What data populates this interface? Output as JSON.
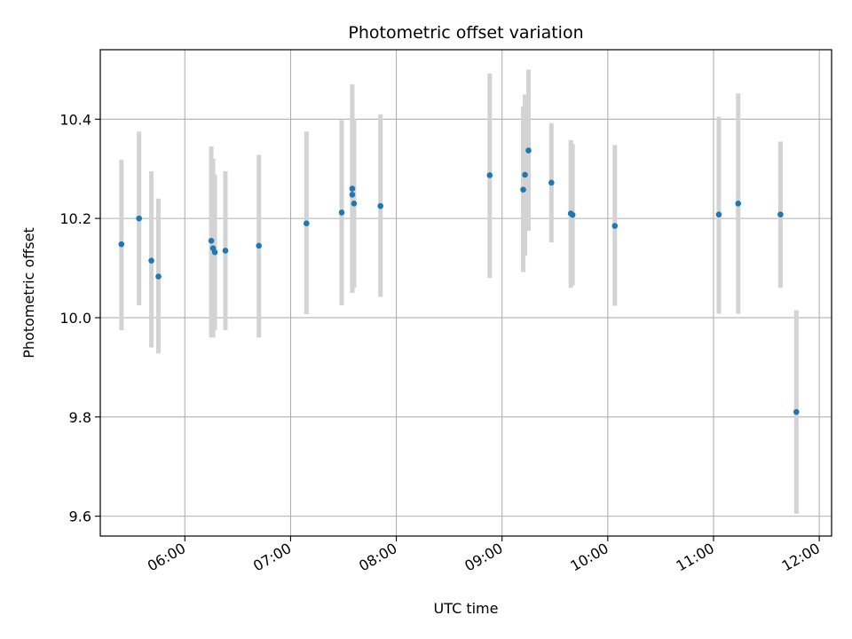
{
  "chart_data": {
    "type": "scatter",
    "title": "Photometric offset variation",
    "xlabel": "UTC time",
    "ylabel": "Photometric offset",
    "x_tick_labels": [
      "06:00",
      "07:00",
      "08:00",
      "09:00",
      "10:00",
      "11:00",
      "12:00"
    ],
    "y_tick_labels": [
      "9.6",
      "9.8",
      "10.0",
      "10.2",
      "10.4"
    ],
    "y_ticks": [
      9.6,
      9.8,
      10.0,
      10.2,
      10.4
    ],
    "ylim": [
      9.56,
      10.54
    ],
    "xlim": [
      "05:12",
      "12:07"
    ],
    "grid": true,
    "point_color": "#1f77b4",
    "errorbar_color": "#d3d3d3",
    "points": [
      {
        "x": "05:24",
        "y": 10.148,
        "yerr_low": 9.975,
        "yerr_high": 10.318
      },
      {
        "x": "05:34",
        "y": 10.2,
        "yerr_low": 10.025,
        "yerr_high": 10.375
      },
      {
        "x": "05:41",
        "y": 10.115,
        "yerr_low": 9.94,
        "yerr_high": 10.295
      },
      {
        "x": "05:45",
        "y": 10.083,
        "yerr_low": 9.928,
        "yerr_high": 10.24
      },
      {
        "x": "06:15",
        "y": 10.155,
        "yerr_low": 9.96,
        "yerr_high": 10.345
      },
      {
        "x": "06:16",
        "y": 10.14,
        "yerr_low": 9.96,
        "yerr_high": 10.32
      },
      {
        "x": "06:17",
        "y": 10.132,
        "yerr_low": 9.975,
        "yerr_high": 10.288
      },
      {
        "x": "06:23",
        "y": 10.135,
        "yerr_low": 9.975,
        "yerr_high": 10.295
      },
      {
        "x": "06:42",
        "y": 10.145,
        "yerr_low": 9.96,
        "yerr_high": 10.328
      },
      {
        "x": "07:09",
        "y": 10.19,
        "yerr_low": 10.007,
        "yerr_high": 10.375
      },
      {
        "x": "07:29",
        "y": 10.212,
        "yerr_low": 10.025,
        "yerr_high": 10.398
      },
      {
        "x": "07:35",
        "y": 10.26,
        "yerr_low": 10.05,
        "yerr_high": 10.47
      },
      {
        "x": "07:35",
        "y": 10.248,
        "yerr_low": 10.055,
        "yerr_high": 10.44
      },
      {
        "x": "07:36",
        "y": 10.23,
        "yerr_low": 10.06,
        "yerr_high": 10.4
      },
      {
        "x": "07:51",
        "y": 10.225,
        "yerr_low": 10.042,
        "yerr_high": 10.41
      },
      {
        "x": "08:53",
        "y": 10.287,
        "yerr_low": 10.08,
        "yerr_high": 10.492
      },
      {
        "x": "09:12",
        "y": 10.258,
        "yerr_low": 10.092,
        "yerr_high": 10.425
      },
      {
        "x": "09:13",
        "y": 10.288,
        "yerr_low": 10.125,
        "yerr_high": 10.45
      },
      {
        "x": "09:15",
        "y": 10.337,
        "yerr_low": 10.175,
        "yerr_high": 10.5
      },
      {
        "x": "09:28",
        "y": 10.272,
        "yerr_low": 10.152,
        "yerr_high": 10.392
      },
      {
        "x": "09:39",
        "y": 10.21,
        "yerr_low": 10.06,
        "yerr_high": 10.358
      },
      {
        "x": "09:40",
        "y": 10.207,
        "yerr_low": 10.065,
        "yerr_high": 10.35
      },
      {
        "x": "10:04",
        "y": 10.185,
        "yerr_low": 10.024,
        "yerr_high": 10.348
      },
      {
        "x": "11:03",
        "y": 10.208,
        "yerr_low": 10.008,
        "yerr_high": 10.405
      },
      {
        "x": "11:14",
        "y": 10.23,
        "yerr_low": 10.008,
        "yerr_high": 10.452
      },
      {
        "x": "11:38",
        "y": 10.208,
        "yerr_low": 10.06,
        "yerr_high": 10.355
      },
      {
        "x": "11:47",
        "y": 9.81,
        "yerr_low": 9.605,
        "yerr_high": 10.015
      }
    ]
  }
}
